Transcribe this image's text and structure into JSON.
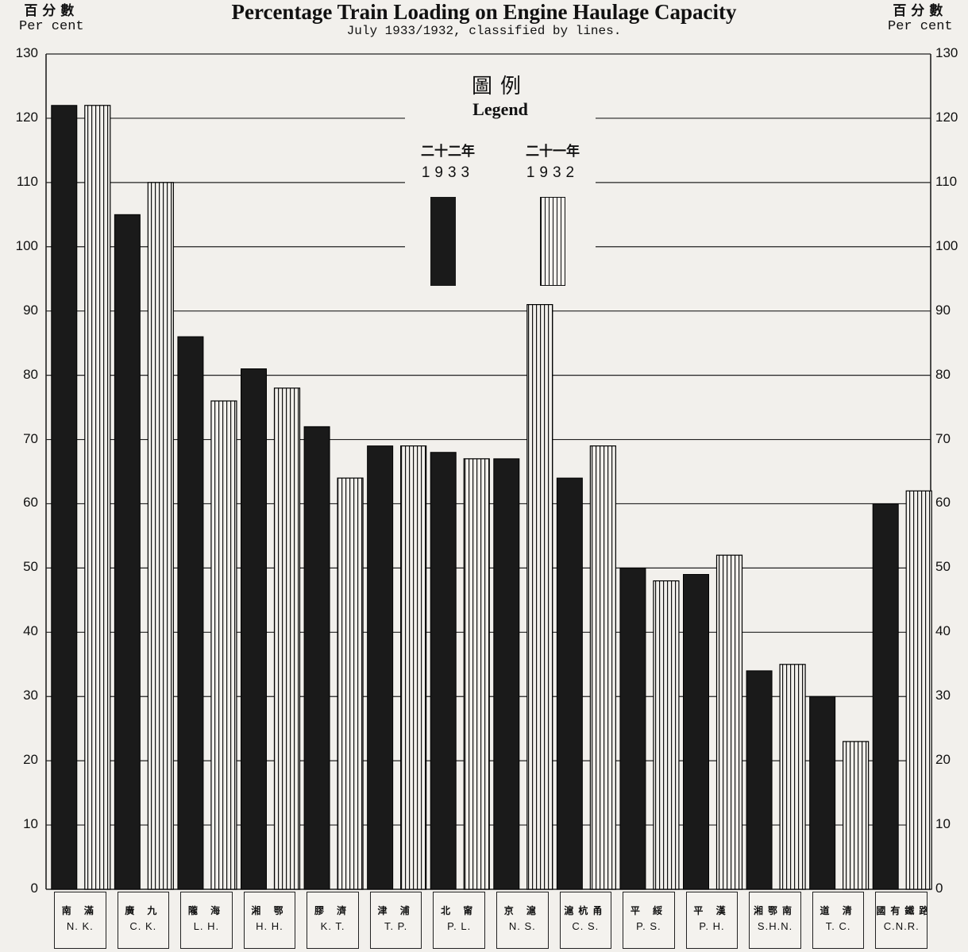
{
  "header": {
    "title": "Percentage Train Loading on Engine Haulage Capacity",
    "subtitle": "July 1933/1932, classified by lines.",
    "left_unit_zh": "百分數",
    "left_unit_en": "Per cent",
    "right_unit_zh": "百分數",
    "right_unit_en": "Per cent"
  },
  "legend": {
    "title_zh": "圖例",
    "title_en": "Legend",
    "items": [
      {
        "label_zh": "二十二年",
        "year": "1933"
      },
      {
        "label_zh": "二十一年",
        "year": "1932"
      }
    ]
  },
  "colors": {
    "bar_1933": "#1a1a1a",
    "bar_1932_stripe": "#111111",
    "background": "#f2f0ec"
  },
  "chart_data": {
    "type": "bar",
    "title": "Percentage Train Loading on Engine Haulage Capacity",
    "subtitle": "July 1933/1932, classified by lines.",
    "ylabel": "Per cent",
    "ylim": [
      0,
      130
    ],
    "yticks": [
      0,
      10,
      20,
      30,
      40,
      50,
      60,
      70,
      80,
      90,
      100,
      110,
      120,
      130
    ],
    "grid": true,
    "legend_position": "top-center",
    "categories": [
      {
        "zh": "南 滿",
        "en": "N. K."
      },
      {
        "zh": "廣 九",
        "en": "C. K."
      },
      {
        "zh": "隴 海",
        "en": "L. H."
      },
      {
        "zh": "湘 鄂",
        "en": "H. H."
      },
      {
        "zh": "膠 濟",
        "en": "K. T."
      },
      {
        "zh": "津 浦",
        "en": "T. P."
      },
      {
        "zh": "北 甯",
        "en": "P. L."
      },
      {
        "zh": "京 滬",
        "en": "N. S."
      },
      {
        "zh": "滬杭甬",
        "en": "C. S."
      },
      {
        "zh": "平 綏",
        "en": "P. S."
      },
      {
        "zh": "平 漢",
        "en": "P. H."
      },
      {
        "zh": "湘鄂南",
        "en": "S.H.N."
      },
      {
        "zh": "道 清",
        "en": "T. C."
      },
      {
        "zh": "國有鐵路",
        "en": "C.N.R."
      }
    ],
    "series": [
      {
        "name": "1933",
        "values": [
          122,
          105,
          86,
          81,
          72,
          69,
          68,
          67,
          64,
          50,
          49,
          34,
          30,
          60
        ]
      },
      {
        "name": "1932",
        "values": [
          122,
          110,
          76,
          78,
          64,
          69,
          67,
          91,
          69,
          48,
          52,
          35,
          23,
          62
        ]
      }
    ]
  }
}
